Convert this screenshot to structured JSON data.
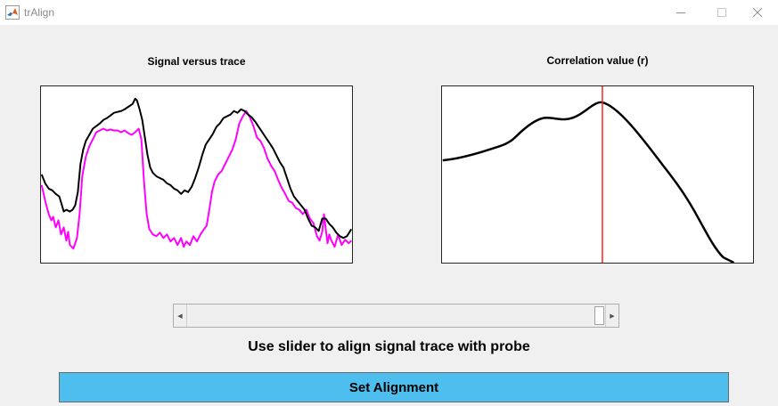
{
  "window": {
    "title": "trAlign",
    "icon": "matlab-icon",
    "controls": [
      "minimize-icon",
      "maximize-icon",
      "close-icon"
    ]
  },
  "left_axes": {
    "title": "Signal versus trace",
    "line_colors": {
      "signal": "#000000",
      "trace": "#ff00ff"
    }
  },
  "right_axes": {
    "title": "Correlation value (r)",
    "line_colors": {
      "correlation": "#000000",
      "marker": "#ff0000"
    }
  },
  "slider": {
    "left_arrow_icon": "triangle-left-icon",
    "right_arrow_icon": "triangle-right-icon",
    "value_fraction": 0.97
  },
  "instruction": "Use slider to align signal trace with probe",
  "set_button": {
    "label": "Set Alignment",
    "color": "#4dbeee"
  }
}
